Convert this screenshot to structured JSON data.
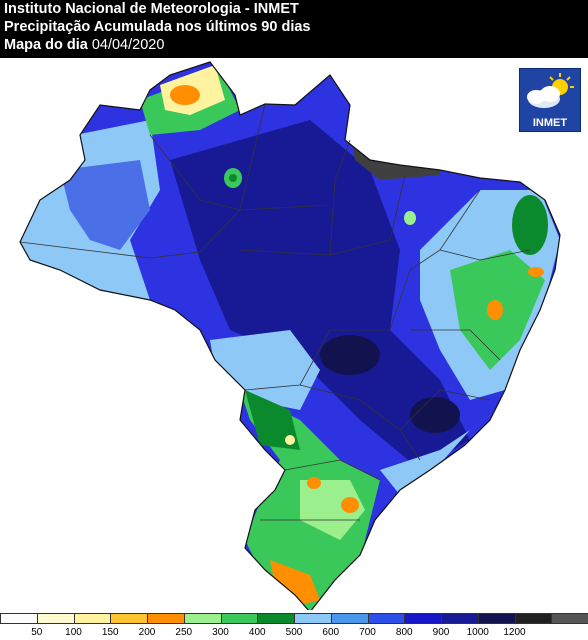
{
  "header": {
    "line1": "Instituto Nacional de Meteorologia - INMET",
    "line2": "Precipitação Acumulada nos últimos 90 dias",
    "line3_prefix": "Mapa do dia",
    "date": "04/04/2020"
  },
  "logo": {
    "text": "INMET",
    "icon": "cloud-sun-icon"
  },
  "legend": {
    "colors": [
      "#ffffff",
      "#fffbd0",
      "#fff3a0",
      "#ffc430",
      "#ff8f00",
      "#9bef8c",
      "#3bc85b",
      "#0b8a2d",
      "#8ec8f7",
      "#4b97ee",
      "#2d4ee8",
      "#1717c9",
      "#181a95",
      "#11124e",
      "#202020",
      "#555555"
    ],
    "ticks": [
      "50",
      "100",
      "150",
      "200",
      "250",
      "300",
      "400",
      "500",
      "600",
      "700",
      "800",
      "900",
      "1000",
      "1200"
    ]
  },
  "map_colors": {
    "ocean": "#ffffff",
    "very_wet": "#11124e",
    "dark_blue": "#181a95",
    "blue": "#2d33e0",
    "mid_blue": "#4b6fe6",
    "light_blue": "#8ec8f7",
    "green_dark": "#0b8a2d",
    "green": "#3bc85b",
    "light_green": "#9bef8c",
    "orange": "#ff8f00",
    "yellow": "#fff3a0",
    "gray": "#404040"
  }
}
